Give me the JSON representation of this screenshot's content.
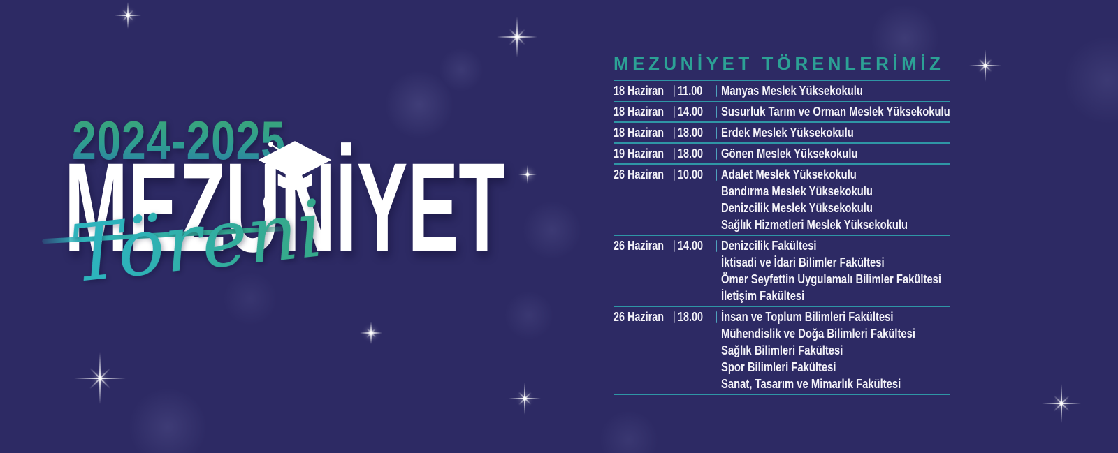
{
  "poster": {
    "season": "2024-2025",
    "title": "MEZUNİYET",
    "subtitle_script": "Töreni"
  },
  "schedule": {
    "heading": "MEZUNİYET TÖRENLERİMİZ",
    "rows": [
      {
        "date": "18 Haziran",
        "time": "11.00",
        "venues": [
          "Manyas Meslek Yüksekokulu"
        ]
      },
      {
        "date": "18 Haziran",
        "time": "14.00",
        "venues": [
          "Susurluk Tarım ve Orman Meslek Yüksekokulu"
        ]
      },
      {
        "date": "18 Haziran",
        "time": "18.00",
        "venues": [
          "Erdek Meslek Yüksekokulu"
        ]
      },
      {
        "date": "19 Haziran",
        "time": "18.00",
        "venues": [
          "Gönen Meslek Yüksekokulu"
        ]
      },
      {
        "date": "26 Haziran",
        "time": "10.00",
        "venues": [
          "Adalet Meslek Yüksekokulu",
          "Bandırma Meslek Yüksekokulu",
          "Denizcilik Meslek Yüksekokulu",
          "Sağlık Hizmetleri Meslek Yüksekokulu"
        ]
      },
      {
        "date": "26 Haziran",
        "time": "14.00",
        "venues": [
          "Denizcilik Fakültesi",
          "İktisadi ve İdari Bilimler Fakültesi",
          "Ömer Seyfettin Uygulamalı Bilimler Fakültesi",
          "İletişim Fakültesi"
        ]
      },
      {
        "date": "26 Haziran",
        "time": "18.00",
        "venues": [
          "İnsan ve Toplum Bilimleri Fakültesi",
          "Mühendislik ve Doğa Bilimleri Fakültesi",
          "Sağlık Bilimleri Fakültesi",
          "Spor Bilimleri Fakültesi",
          "Sanat, Tasarım ve Mimarlık Fakültesi"
        ]
      }
    ]
  },
  "icons": {
    "graduation_cap": "graduation-cap-icon (white mortarboard with tassel, drawn as inline SVG)",
    "sparkle": "sparkle-icon (white 4/8-point star flare, drawn with CSS gradients)"
  },
  "colors": {
    "background": "#2d2a64",
    "accent_teal": "#2ca195",
    "line_teal": "#2f96a5",
    "text_white": "#f3f2f8",
    "title_gradient_green": "#3ba578",
    "title_gradient_blue": "#2b7ea6",
    "script_teal": "#2db3bc"
  }
}
